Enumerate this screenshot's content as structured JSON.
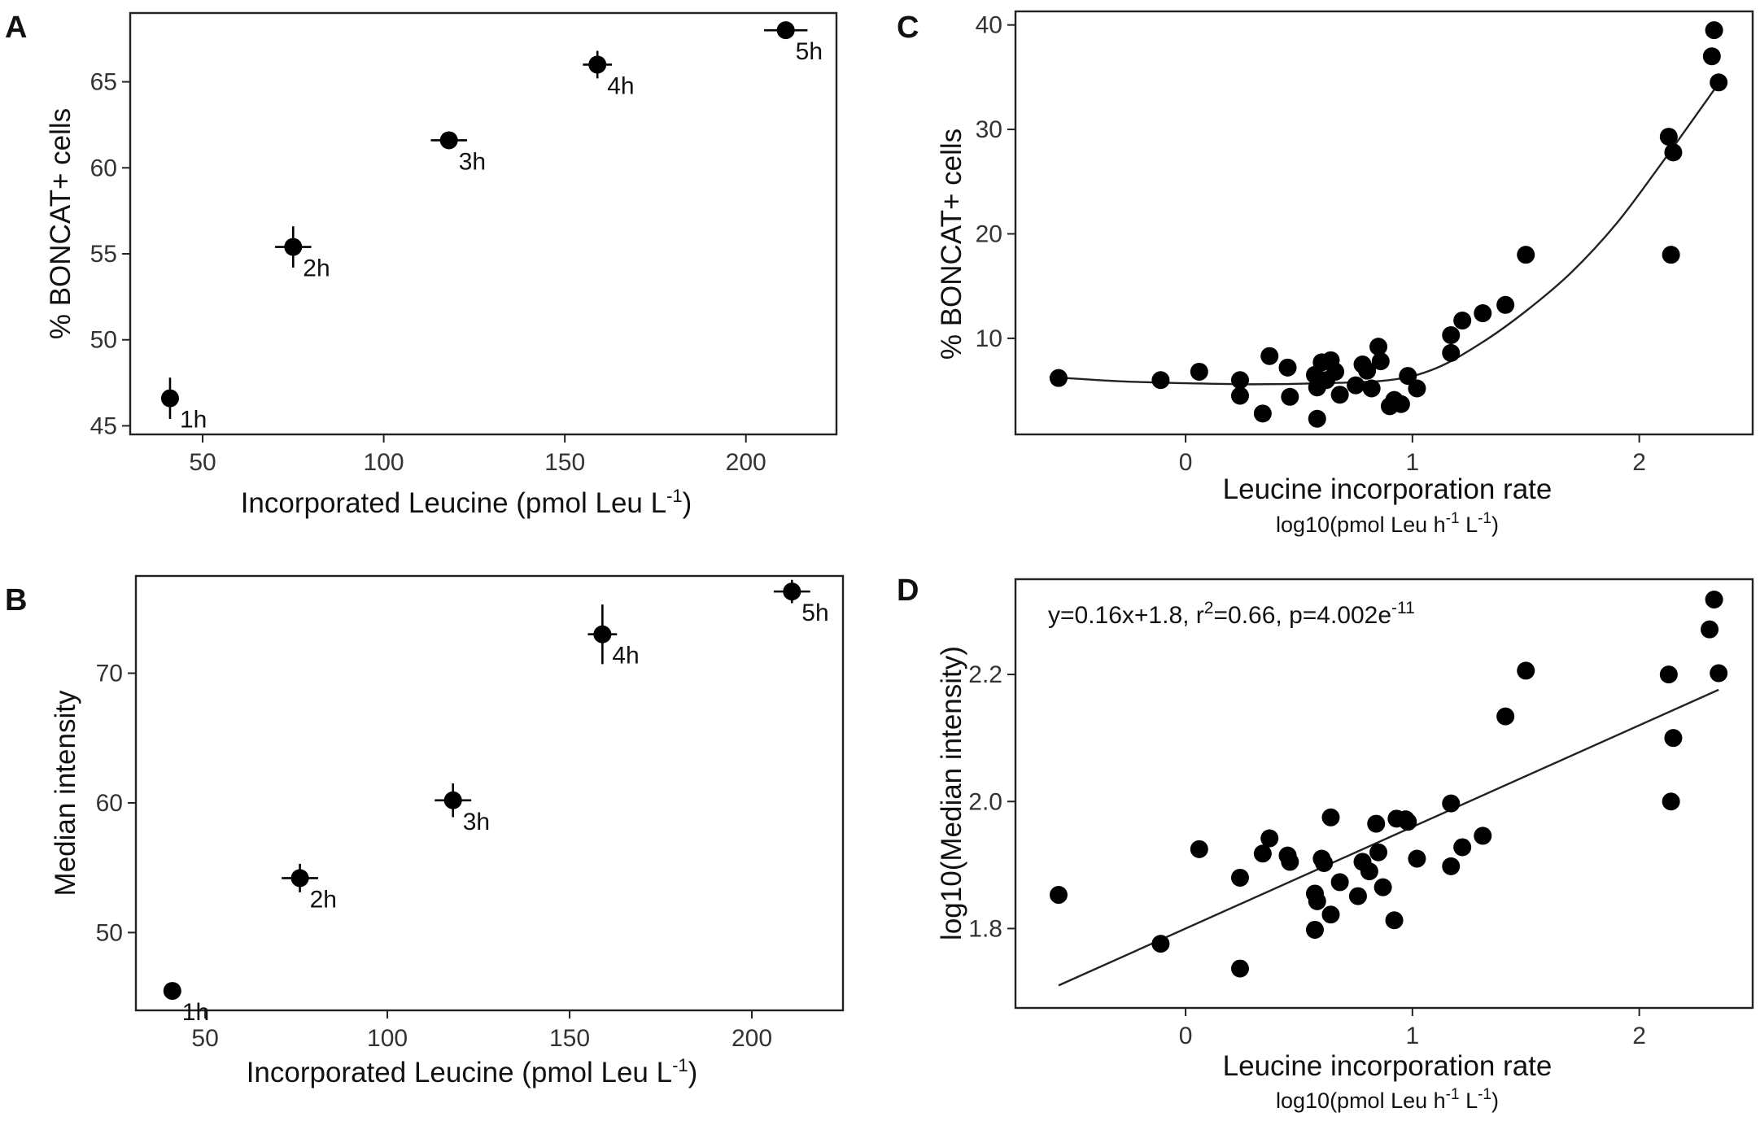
{
  "figure": {
    "panels": [
      "A",
      "B",
      "C",
      "D"
    ]
  },
  "chart_data": [
    {
      "id": "A",
      "type": "scatter",
      "letter": "A",
      "title": "",
      "xlabel": "Incorporated Leucine (pmol Leu L",
      "xlabel_sup": "-1",
      "xlabel_close": ")",
      "ylabel": "% BONCAT+ cells",
      "xlim": [
        30,
        225
      ],
      "ylim": [
        44.5,
        69
      ],
      "xticks": [
        50,
        100,
        150,
        200
      ],
      "yticks": [
        45,
        50,
        55,
        60,
        65
      ],
      "points": [
        {
          "x": 41,
          "y": 46.6,
          "xerr": 2,
          "yerr": 1.2,
          "label": "1h"
        },
        {
          "x": 75,
          "y": 55.4,
          "xerr": 5,
          "yerr": 1.2,
          "label": "2h"
        },
        {
          "x": 118,
          "y": 61.6,
          "xerr": 5,
          "yerr": 0.5,
          "label": "3h"
        },
        {
          "x": 159,
          "y": 66.0,
          "xerr": 4,
          "yerr": 0.8,
          "label": "4h"
        },
        {
          "x": 211,
          "y": 68.0,
          "xerr": 6,
          "yerr": 0.3,
          "label": "5h"
        }
      ]
    },
    {
      "id": "B",
      "type": "scatter",
      "letter": "B",
      "title": "",
      "xlabel": "Incorporated Leucine (pmol Leu L",
      "xlabel_sup": "-1",
      "xlabel_close": ")",
      "ylabel": "Median intensity",
      "xlim": [
        31,
        225
      ],
      "ylim": [
        44,
        77.5
      ],
      "xticks": [
        50,
        100,
        150,
        200
      ],
      "yticks": [
        50,
        60,
        70
      ],
      "points": [
        {
          "x": 41,
          "y": 45.5,
          "xerr": 1.5,
          "yerr": 0.6,
          "label": "1h"
        },
        {
          "x": 76,
          "y": 54.2,
          "xerr": 5,
          "yerr": 1.1,
          "label": "2h"
        },
        {
          "x": 118,
          "y": 60.2,
          "xerr": 5,
          "yerr": 1.3,
          "label": "3h"
        },
        {
          "x": 159,
          "y": 73.0,
          "xerr": 4,
          "yerr": 2.3,
          "label": "4h"
        },
        {
          "x": 211,
          "y": 76.3,
          "xerr": 5,
          "yerr": 0.9,
          "label": "5h"
        }
      ]
    },
    {
      "id": "C",
      "type": "scatter",
      "letter": "C",
      "title": "",
      "xlabel": "Leucine incorporation rate",
      "xsublabel_a": "log10(pmol Leu h",
      "xsublabel_sup1": "-1",
      "xsublabel_b": " L",
      "xsublabel_sup2": "-1",
      "xsublabel_c": ")",
      "ylabel": "% BONCAT+ cells",
      "xlim": [
        -0.75,
        2.5
      ],
      "ylim": [
        0.8,
        41.3
      ],
      "xticks": [
        0,
        1,
        2
      ],
      "yticks": [
        10,
        20,
        30,
        40
      ],
      "fit_curve": {
        "type": "loess",
        "x": [
          -0.6,
          -0.3,
          0,
          0.3,
          0.6,
          0.9,
          1.1,
          1.3,
          1.5,
          1.7,
          1.9,
          2.1,
          2.35
        ],
        "y": [
          6.3,
          5.9,
          5.7,
          5.6,
          5.7,
          6.0,
          7.1,
          9.5,
          12.6,
          16.3,
          21.0,
          26.8,
          34.4
        ]
      },
      "points": [
        {
          "x": -0.56,
          "y": 6.2
        },
        {
          "x": -0.11,
          "y": 6.0
        },
        {
          "x": 0.06,
          "y": 6.8
        },
        {
          "x": 0.24,
          "y": 6.0
        },
        {
          "x": 0.24,
          "y": 4.5
        },
        {
          "x": 0.34,
          "y": 2.8
        },
        {
          "x": 0.37,
          "y": 8.3
        },
        {
          "x": 0.45,
          "y": 7.2
        },
        {
          "x": 0.46,
          "y": 4.4
        },
        {
          "x": 0.57,
          "y": 6.5
        },
        {
          "x": 0.58,
          "y": 5.3
        },
        {
          "x": 0.58,
          "y": 2.3
        },
        {
          "x": 0.6,
          "y": 7.7
        },
        {
          "x": 0.62,
          "y": 6.0
        },
        {
          "x": 0.64,
          "y": 7.9
        },
        {
          "x": 0.66,
          "y": 6.8
        },
        {
          "x": 0.68,
          "y": 4.6
        },
        {
          "x": 0.75,
          "y": 5.5
        },
        {
          "x": 0.78,
          "y": 7.5
        },
        {
          "x": 0.8,
          "y": 6.9
        },
        {
          "x": 0.82,
          "y": 5.2
        },
        {
          "x": 0.85,
          "y": 9.2
        },
        {
          "x": 0.86,
          "y": 7.8
        },
        {
          "x": 0.9,
          "y": 3.5
        },
        {
          "x": 0.92,
          "y": 4.1
        },
        {
          "x": 0.95,
          "y": 3.7
        },
        {
          "x": 0.98,
          "y": 6.4
        },
        {
          "x": 1.02,
          "y": 5.2
        },
        {
          "x": 1.17,
          "y": 10.3
        },
        {
          "x": 1.17,
          "y": 8.6
        },
        {
          "x": 1.22,
          "y": 11.7
        },
        {
          "x": 1.31,
          "y": 12.4
        },
        {
          "x": 1.41,
          "y": 13.2
        },
        {
          "x": 1.5,
          "y": 18.0
        },
        {
          "x": 2.13,
          "y": 29.3
        },
        {
          "x": 2.15,
          "y": 27.8
        },
        {
          "x": 2.14,
          "y": 18.0
        },
        {
          "x": 2.32,
          "y": 37.0
        },
        {
          "x": 2.33,
          "y": 39.5
        },
        {
          "x": 2.35,
          "y": 34.5
        }
      ]
    },
    {
      "id": "D",
      "type": "scatter",
      "letter": "D",
      "title": "",
      "xlabel": "Leucine incorporation rate",
      "xsublabel_a": "log10(pmol Leu h",
      "xsublabel_sup1": "-1",
      "xsublabel_b": " L",
      "xsublabel_sup2": "-1",
      "xsublabel_c": ")",
      "ylabel": "log10(Median intensity)",
      "xlim": [
        -0.75,
        2.5
      ],
      "ylim": [
        1.675,
        2.35
      ],
      "xticks": [
        0,
        1,
        2
      ],
      "yticks": [
        1.8,
        2.0,
        2.2
      ],
      "annotation_a": "y=0.16x+1.8, r",
      "annotation_sup1": "2",
      "annotation_b": "=0.66, p=4.002e",
      "annotation_sup2": "-11",
      "regression": {
        "slope": 0.16,
        "intercept": 1.8,
        "x_range": [
          -0.56,
          2.35
        ]
      },
      "points": [
        {
          "x": -0.56,
          "y": 1.853
        },
        {
          "x": -0.11,
          "y": 1.776
        },
        {
          "x": 0.06,
          "y": 1.925
        },
        {
          "x": 0.24,
          "y": 1.88
        },
        {
          "x": 0.24,
          "y": 1.737
        },
        {
          "x": 0.34,
          "y": 1.918
        },
        {
          "x": 0.37,
          "y": 1.942
        },
        {
          "x": 0.45,
          "y": 1.915
        },
        {
          "x": 0.46,
          "y": 1.905
        },
        {
          "x": 0.57,
          "y": 1.855
        },
        {
          "x": 0.58,
          "y": 1.843
        },
        {
          "x": 0.57,
          "y": 1.798
        },
        {
          "x": 0.6,
          "y": 1.91
        },
        {
          "x": 0.61,
          "y": 1.903
        },
        {
          "x": 0.64,
          "y": 1.822
        },
        {
          "x": 0.64,
          "y": 1.975
        },
        {
          "x": 0.68,
          "y": 1.873
        },
        {
          "x": 0.76,
          "y": 1.851
        },
        {
          "x": 0.78,
          "y": 1.905
        },
        {
          "x": 0.81,
          "y": 1.89
        },
        {
          "x": 0.84,
          "y": 1.965
        },
        {
          "x": 0.85,
          "y": 1.92
        },
        {
          "x": 0.87,
          "y": 1.865
        },
        {
          "x": 0.92,
          "y": 1.813
        },
        {
          "x": 0.93,
          "y": 1.973
        },
        {
          "x": 0.97,
          "y": 1.972
        },
        {
          "x": 0.98,
          "y": 1.968
        },
        {
          "x": 1.02,
          "y": 1.91
        },
        {
          "x": 1.17,
          "y": 1.997
        },
        {
          "x": 1.17,
          "y": 1.898
        },
        {
          "x": 1.22,
          "y": 1.928
        },
        {
          "x": 1.31,
          "y": 1.946
        },
        {
          "x": 1.41,
          "y": 2.134
        },
        {
          "x": 1.5,
          "y": 2.206
        },
        {
          "x": 2.13,
          "y": 2.2
        },
        {
          "x": 2.15,
          "y": 2.1
        },
        {
          "x": 2.14,
          "y": 2.0
        },
        {
          "x": 2.31,
          "y": 2.271
        },
        {
          "x": 2.33,
          "y": 2.318
        },
        {
          "x": 2.35,
          "y": 2.202
        }
      ]
    }
  ]
}
